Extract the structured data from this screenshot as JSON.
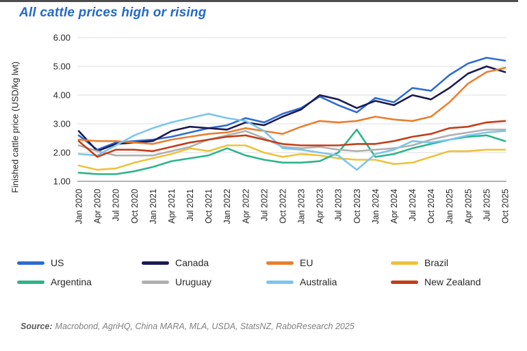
{
  "header": {
    "title": "All cattle prices high or rising"
  },
  "chart_data": {
    "type": "line",
    "title": "All cattle prices high or rising",
    "xlabel": "",
    "ylabel": "Finished cattle price (USD/kg lwt)",
    "ylim": [
      1.0,
      6.0
    ],
    "yticks": [
      6.0,
      5.0,
      4.0,
      3.0,
      2.0,
      1.0
    ],
    "grid": "horizontal",
    "legend_position": "bottom",
    "categories": [
      "Jan 2020",
      "Apr 2020",
      "Jul 2020",
      "Oct 2020",
      "Jan 2021",
      "Apr 2021",
      "Jul 2021",
      "Oct 2021",
      "Jan 2022",
      "Apr 2022",
      "Jul 2022",
      "Oct 2022",
      "Jan 2023",
      "Apr 2023",
      "Jul 2023",
      "Oct 2023",
      "Jan 2024",
      "Apr 2024",
      "Jul 2024",
      "Oct 2024",
      "Jan 2025",
      "Apr 2025",
      "Jul 2025",
      "Oct 2025"
    ],
    "series": [
      {
        "name": "US",
        "color": "#2e6bd0",
        "values": [
          2.6,
          2.1,
          2.35,
          2.4,
          2.45,
          2.55,
          2.7,
          2.85,
          2.95,
          3.2,
          3.05,
          3.35,
          3.55,
          3.95,
          3.65,
          3.4,
          3.9,
          3.75,
          4.25,
          4.15,
          4.7,
          5.1,
          5.3,
          5.2
        ]
      },
      {
        "name": "Canada",
        "color": "#1a1a52",
        "values": [
          2.75,
          2.05,
          2.3,
          2.35,
          2.4,
          2.75,
          2.9,
          2.85,
          2.8,
          3.05,
          2.95,
          3.25,
          3.5,
          4.0,
          3.85,
          3.55,
          3.8,
          3.65,
          4.0,
          3.85,
          4.25,
          4.75,
          5.0,
          4.8
        ]
      },
      {
        "name": "EU",
        "color": "#e87f2e",
        "values": [
          2.45,
          2.4,
          2.4,
          2.35,
          2.3,
          2.45,
          2.55,
          2.65,
          2.7,
          2.85,
          2.75,
          2.65,
          2.9,
          3.1,
          3.05,
          3.1,
          3.25,
          3.15,
          3.1,
          3.25,
          3.75,
          4.4,
          4.8,
          4.95
        ]
      },
      {
        "name": "Brazil",
        "color": "#edc23c",
        "values": [
          1.55,
          1.4,
          1.45,
          1.65,
          1.8,
          1.95,
          2.15,
          2.05,
          2.25,
          2.25,
          2.0,
          1.85,
          1.95,
          1.9,
          1.8,
          1.75,
          1.75,
          1.6,
          1.65,
          1.85,
          2.05,
          2.05,
          2.1,
          2.1
        ]
      },
      {
        "name": "Argentina",
        "color": "#2cb489",
        "values": [
          1.3,
          1.25,
          1.25,
          1.35,
          1.5,
          1.7,
          1.8,
          1.9,
          2.15,
          1.9,
          1.75,
          1.65,
          1.65,
          1.7,
          2.0,
          2.8,
          1.85,
          1.95,
          2.15,
          2.3,
          2.45,
          2.55,
          2.6,
          2.4
        ]
      },
      {
        "name": "Uruguay",
        "color": "#b1b0b0",
        "values": [
          2.25,
          2.05,
          1.9,
          1.9,
          1.9,
          2.05,
          2.2,
          2.45,
          2.6,
          2.75,
          2.5,
          2.2,
          2.15,
          2.2,
          2.1,
          2.05,
          2.1,
          2.15,
          2.25,
          2.45,
          2.6,
          2.7,
          2.8,
          2.8
        ]
      },
      {
        "name": "Australia",
        "color": "#7cc5eb",
        "values": [
          1.95,
          1.9,
          2.25,
          2.6,
          2.85,
          3.05,
          3.2,
          3.35,
          3.2,
          3.1,
          2.75,
          2.15,
          2.1,
          2.0,
          1.9,
          1.4,
          1.95,
          2.1,
          2.4,
          2.35,
          2.45,
          2.6,
          2.7,
          2.75
        ]
      },
      {
        "name": "New Zealand",
        "color": "#c23d18",
        "values": [
          2.4,
          1.85,
          2.1,
          2.1,
          2.05,
          2.2,
          2.35,
          2.45,
          2.55,
          2.6,
          2.45,
          2.3,
          2.25,
          2.25,
          2.25,
          2.3,
          2.3,
          2.4,
          2.55,
          2.65,
          2.85,
          2.9,
          3.05,
          3.1
        ]
      }
    ]
  },
  "source": {
    "label": "Source:",
    "text": "Macrobond, AgriHQ, China MARA, MLA, USDA, StatsNZ, RaboResearch 2025"
  },
  "axis_colors": {
    "gridline": "#dcdcdc",
    "axis_line": "#9a9a9a",
    "tick_text": "#262626"
  }
}
